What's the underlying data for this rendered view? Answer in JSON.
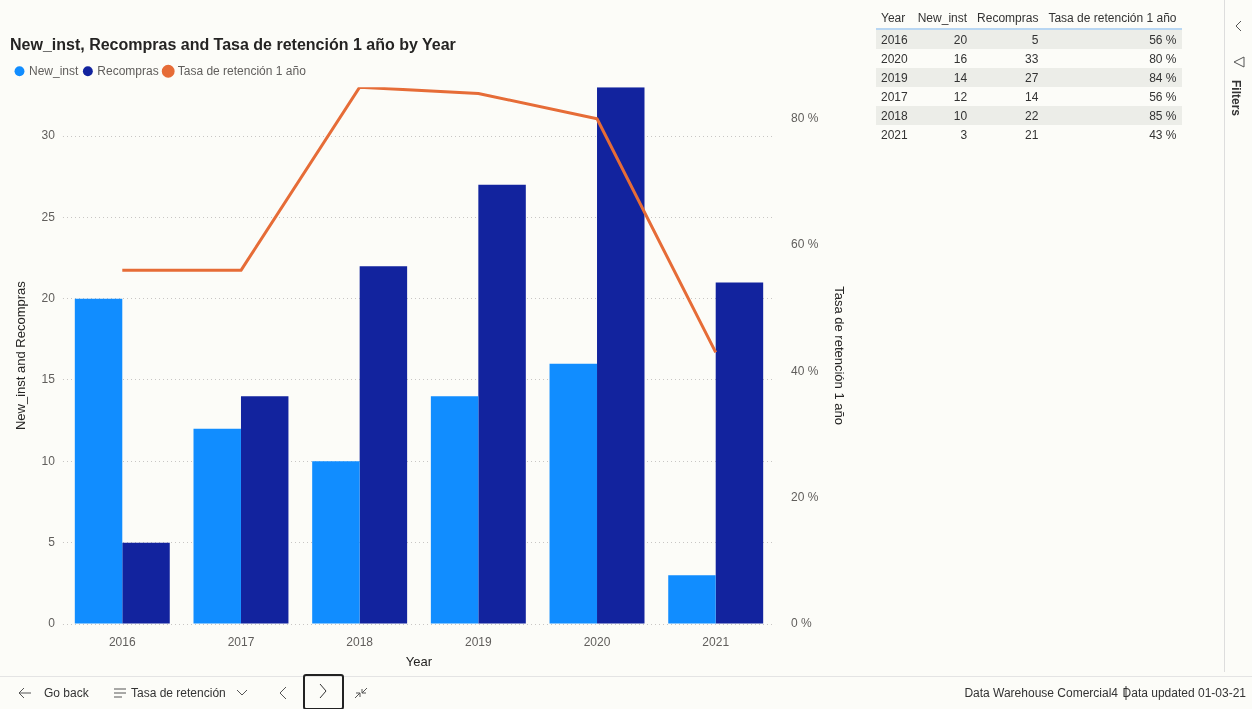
{
  "chart_data": [
    {
      "type": "bar",
      "title": "New_inst, Recompras and Tasa de retención 1 año by Year",
      "xlabel": "Year",
      "ylabel": "New_inst and Recompras",
      "y2label": "Tasa de retención 1 año",
      "categories": [
        "2016",
        "2017",
        "2018",
        "2019",
        "2020",
        "2021"
      ],
      "series": [
        {
          "name": "New_inst",
          "color": "#118dff",
          "values": [
            20,
            12,
            10,
            14,
            16,
            3
          ]
        },
        {
          "name": "Recompras",
          "color": "#12239e",
          "values": [
            5,
            14,
            22,
            27,
            33,
            21
          ]
        },
        {
          "name": "Tasa de retención 1 año",
          "type": "line",
          "axis": "y2",
          "color": "#e66c37",
          "values": [
            56,
            56,
            85,
            84,
            80,
            43
          ]
        }
      ],
      "ylim": [
        0,
        33
      ],
      "yticks": [
        0,
        5,
        10,
        15,
        20,
        25,
        30
      ],
      "y2lim": [
        0,
        85
      ],
      "y2ticks": [
        {
          "value": 0,
          "label": "0 %"
        },
        {
          "value": 20,
          "label": "20 %"
        },
        {
          "value": 40,
          "label": "40 %"
        },
        {
          "value": 60,
          "label": "60 %"
        },
        {
          "value": 80,
          "label": "80 %"
        }
      ],
      "grid": "y",
      "legend": "top left",
      "marker": "none",
      "line_style": "solid",
      "annotations": [
        "Go back",
        "Tasa de retención",
        "Data Warehouse Comercial4",
        "Data updated 01-03-21",
        "Filters"
      ]
    },
    {
      "type": "other",
      "xlabel": "Year",
      "categories": [
        "2016",
        "2020",
        "2019",
        "2017",
        "2018",
        "2021"
      ],
      "series": [
        {
          "name": "New_inst",
          "values": [
            20,
            16,
            14,
            12,
            10,
            3
          ],
          "value_labels": [
            "20",
            "16",
            "14",
            "12",
            "10",
            "3"
          ]
        },
        {
          "name": "Recompras",
          "values": [
            5,
            33,
            27,
            14,
            22,
            21
          ],
          "value_labels": [
            "5",
            "33",
            "27",
            "14",
            "22",
            "21"
          ]
        },
        {
          "name": "Tasa de retención 1 año",
          "values": [
            56,
            80,
            84,
            56,
            85,
            43
          ],
          "value_labels": [
            "56 %",
            "80 %",
            "84 %",
            "56 %",
            "85 %",
            "43 %"
          ]
        }
      ]
    }
  ]
}
